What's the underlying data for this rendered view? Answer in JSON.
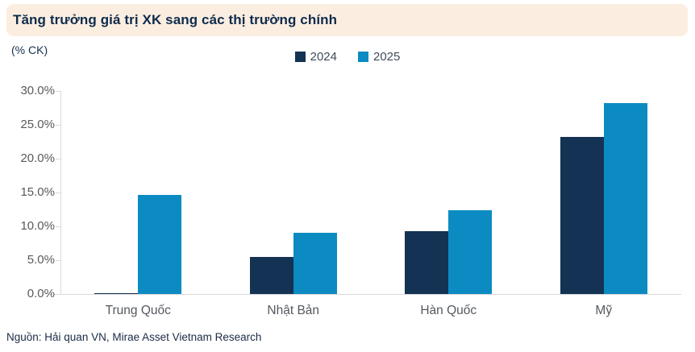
{
  "title": "Tăng trưởng giá trị XK sang các thị trường chính",
  "unit_label": "(% CK)",
  "source": "Nguồn: Hải quan VN, Mirae Asset Vietnam Research",
  "colors": {
    "header_bg": "#FBEEE1",
    "title_text": "#0F2B4C",
    "unit_text": "#14304F",
    "axis_line": "#D9D9D9",
    "tick_text": "#595959",
    "category_text": "#54595F",
    "legend_text": "#3E4B59",
    "source_text": "#1C2B45",
    "series_2024": "#143253",
    "series_2025": "#0B8BC2"
  },
  "chart_data": {
    "type": "bar",
    "title": "Tăng trưởng giá trị XK sang các thị trường chính",
    "ylabel": "(% CK)",
    "categories": [
      "Trung Quốc",
      "Nhật Bản",
      "Hàn Quốc",
      "Mỹ"
    ],
    "series": [
      {
        "name": "2024",
        "color": "#143253",
        "values": [
          0.1,
          5.5,
          9.3,
          23.2
        ]
      },
      {
        "name": "2025",
        "color": "#0B8BC2",
        "values": [
          14.6,
          9.0,
          12.4,
          28.2
        ]
      }
    ],
    "ylim": [
      0,
      30
    ],
    "ytick_values": [
      0,
      5,
      10,
      15,
      20,
      25,
      30
    ],
    "ytick_labels": [
      "0.0%",
      "5.0%",
      "10.0%",
      "15.0%",
      "20.0%",
      "25.0%",
      "30.0%"
    ],
    "legend_position": "top-center",
    "grid": false
  }
}
